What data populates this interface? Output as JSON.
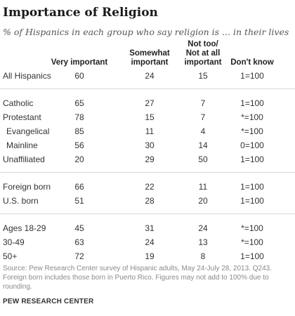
{
  "chart_data": {
    "type": "table",
    "title": "Importance of Religion",
    "subtitle": "% of Hispanics in each group who say religion is ... in their lives",
    "columns": [
      "Very important",
      "Somewhat important",
      "Not too/ Not at all important",
      "Don't know"
    ],
    "groups": [
      [
        {
          "label": "All Hispanics",
          "values": [
            "60",
            "24",
            "15",
            "1=100"
          ]
        }
      ],
      [
        {
          "label": "Catholic",
          "values": [
            "65",
            "27",
            "7",
            "1=100"
          ]
        },
        {
          "label": "Protestant",
          "values": [
            "78",
            "15",
            "7",
            "*=100"
          ]
        },
        {
          "label": "Evangelical",
          "values": [
            "85",
            "11",
            "4",
            "*=100"
          ],
          "indent": true
        },
        {
          "label": "Mainline",
          "values": [
            "56",
            "30",
            "14",
            "0=100"
          ],
          "indent": true
        },
        {
          "label": "Unaffiliated",
          "values": [
            "20",
            "29",
            "50",
            "1=100"
          ]
        }
      ],
      [
        {
          "label": "Foreign born",
          "values": [
            "66",
            "22",
            "11",
            "1=100"
          ]
        },
        {
          "label": "U.S. born",
          "values": [
            "51",
            "28",
            "20",
            "1=100"
          ]
        }
      ],
      [
        {
          "label": "Ages 18-29",
          "values": [
            "45",
            "31",
            "24",
            "*=100"
          ]
        },
        {
          "label": "30-49",
          "values": [
            "63",
            "24",
            "13",
            "*=100"
          ]
        },
        {
          "label": "50+",
          "values": [
            "72",
            "19",
            "8",
            "1=100"
          ]
        }
      ]
    ]
  },
  "source": "Source: Pew Research Center survey of Hispanic adults, May 24-July 28, 2013. Q243. Foreign born includes those born in Puerto Rico. Figures may not add to 100% due to rounding.",
  "credit": "PEW RESEARCH CENTER"
}
